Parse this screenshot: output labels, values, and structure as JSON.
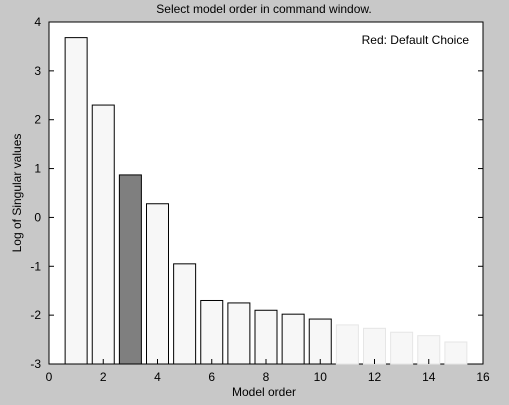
{
  "chart_data": {
    "type": "bar",
    "title": "Select model order in command window.",
    "xlabel": "Model order",
    "ylabel": "Log of Singular values",
    "annotation": "Red: Default Choice",
    "xlim": [
      0,
      16
    ],
    "ylim": [
      -3,
      4
    ],
    "x_ticks": [
      0,
      2,
      4,
      6,
      8,
      10,
      12,
      14,
      16
    ],
    "y_ticks": [
      -3,
      -2,
      -1,
      0,
      1,
      2,
      3,
      4
    ],
    "x": [
      1,
      2,
      3,
      4,
      5,
      6,
      7,
      8,
      9,
      10,
      11,
      12,
      13,
      14,
      15
    ],
    "values": [
      3.68,
      2.3,
      0.87,
      0.28,
      -0.95,
      -1.7,
      -1.75,
      -1.9,
      -1.98,
      -2.08,
      -2.2,
      -2.27,
      -2.35,
      -2.42,
      -2.55
    ],
    "highlighted_index": 2,
    "colors": {
      "bar_fill": "#f7f7f7",
      "highlight_fill": "#7f7f7f",
      "bar_edge": "#000000",
      "plot_background": "#ffffff",
      "figure_background": "#c8c8c8"
    },
    "grid": false,
    "legend": "none"
  }
}
